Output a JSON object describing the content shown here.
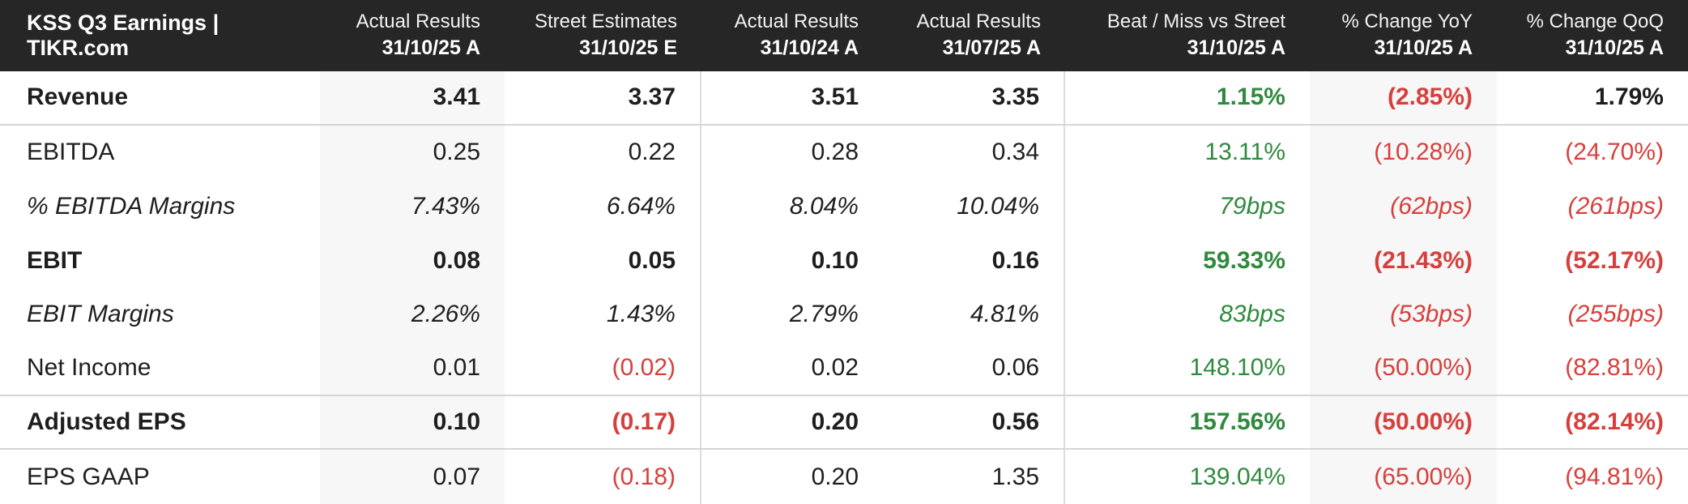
{
  "colors": {
    "positive_green": "#2f8a3e",
    "negative_red": "#d6403c",
    "header_background": "#262626",
    "header_text": "#ffffff",
    "body_text": "#1e1e1e",
    "shaded_column": "#f7f7f7",
    "row_separator": "#d5d5d5",
    "column_divider": "#dcdcdc"
  },
  "chart_data": {
    "type": "table",
    "title": "KSS Q3 Earnings | TIKR.com",
    "columns": [
      {
        "label": "Actual Results",
        "date": "31/10/25 A",
        "shaded": true,
        "divider_right": false
      },
      {
        "label": "Street Estimates",
        "date": "31/10/25 E",
        "shaded": false,
        "divider_right": true
      },
      {
        "label": "Actual Results",
        "date": "31/10/24 A",
        "shaded": false,
        "divider_right": false
      },
      {
        "label": "Actual Results",
        "date": "31/07/25 A",
        "shaded": false,
        "divider_right": true
      },
      {
        "label": "Beat / Miss vs Street",
        "date": "31/10/25 A",
        "shaded": false,
        "divider_right": false
      },
      {
        "label": "% Change YoY",
        "date": "31/10/25 A",
        "shaded": true,
        "divider_right": false
      },
      {
        "label": "% Change QoQ",
        "date": "31/10/25 A",
        "shaded": false,
        "divider_right": false
      }
    ],
    "rows": [
      {
        "label": "Revenue",
        "emphasis": "bold",
        "separator_below": true,
        "cells": [
          {
            "text": "3.41",
            "tone": "dark"
          },
          {
            "text": "3.37",
            "tone": "dark"
          },
          {
            "text": "3.51",
            "tone": "dark"
          },
          {
            "text": "3.35",
            "tone": "dark"
          },
          {
            "text": "1.15%",
            "tone": "green"
          },
          {
            "text": "(2.85%)",
            "tone": "red"
          },
          {
            "text": "1.79%",
            "tone": "dark"
          }
        ]
      },
      {
        "label": "EBITDA",
        "emphasis": "normal",
        "separator_below": false,
        "cells": [
          {
            "text": "0.25",
            "tone": "dark"
          },
          {
            "text": "0.22",
            "tone": "dark"
          },
          {
            "text": "0.28",
            "tone": "dark"
          },
          {
            "text": "0.34",
            "tone": "dark"
          },
          {
            "text": "13.11%",
            "tone": "green"
          },
          {
            "text": "(10.28%)",
            "tone": "red"
          },
          {
            "text": "(24.70%)",
            "tone": "red"
          }
        ]
      },
      {
        "label": "% EBITDA Margins",
        "emphasis": "italic",
        "separator_below": false,
        "cells": [
          {
            "text": "7.43%",
            "tone": "dark"
          },
          {
            "text": "6.64%",
            "tone": "dark"
          },
          {
            "text": "8.04%",
            "tone": "dark"
          },
          {
            "text": "10.04%",
            "tone": "dark"
          },
          {
            "text": "79bps",
            "tone": "green"
          },
          {
            "text": "(62bps)",
            "tone": "red"
          },
          {
            "text": "(261bps)",
            "tone": "red"
          }
        ]
      },
      {
        "label": "EBIT",
        "emphasis": "bold",
        "separator_below": false,
        "cells": [
          {
            "text": "0.08",
            "tone": "dark"
          },
          {
            "text": "0.05",
            "tone": "dark"
          },
          {
            "text": "0.10",
            "tone": "dark"
          },
          {
            "text": "0.16",
            "tone": "dark"
          },
          {
            "text": "59.33%",
            "tone": "green"
          },
          {
            "text": "(21.43%)",
            "tone": "red"
          },
          {
            "text": "(52.17%)",
            "tone": "red"
          }
        ]
      },
      {
        "label": "EBIT Margins",
        "emphasis": "italic",
        "separator_below": false,
        "cells": [
          {
            "text": "2.26%",
            "tone": "dark"
          },
          {
            "text": "1.43%",
            "tone": "dark"
          },
          {
            "text": "2.79%",
            "tone": "dark"
          },
          {
            "text": "4.81%",
            "tone": "dark"
          },
          {
            "text": "83bps",
            "tone": "green"
          },
          {
            "text": "(53bps)",
            "tone": "red"
          },
          {
            "text": "(255bps)",
            "tone": "red"
          }
        ]
      },
      {
        "label": "Net Income",
        "emphasis": "normal",
        "separator_below": true,
        "cells": [
          {
            "text": "0.01",
            "tone": "dark"
          },
          {
            "text": "(0.02)",
            "tone": "red"
          },
          {
            "text": "0.02",
            "tone": "dark"
          },
          {
            "text": "0.06",
            "tone": "dark"
          },
          {
            "text": "148.10%",
            "tone": "green"
          },
          {
            "text": "(50.00%)",
            "tone": "red"
          },
          {
            "text": "(82.81%)",
            "tone": "red"
          }
        ]
      },
      {
        "label": "Adjusted EPS",
        "emphasis": "bold",
        "separator_below": true,
        "cells": [
          {
            "text": "0.10",
            "tone": "dark"
          },
          {
            "text": "(0.17)",
            "tone": "red"
          },
          {
            "text": "0.20",
            "tone": "dark"
          },
          {
            "text": "0.56",
            "tone": "dark"
          },
          {
            "text": "157.56%",
            "tone": "green"
          },
          {
            "text": "(50.00%)",
            "tone": "red"
          },
          {
            "text": "(82.14%)",
            "tone": "red"
          }
        ]
      },
      {
        "label": "EPS GAAP",
        "emphasis": "normal",
        "separator_below": false,
        "cells": [
          {
            "text": "0.07",
            "tone": "dark"
          },
          {
            "text": "(0.18)",
            "tone": "red"
          },
          {
            "text": "0.20",
            "tone": "dark"
          },
          {
            "text": "1.35",
            "tone": "dark"
          },
          {
            "text": "139.04%",
            "tone": "green"
          },
          {
            "text": "(65.00%)",
            "tone": "red"
          },
          {
            "text": "(94.81%)",
            "tone": "red"
          }
        ]
      }
    ]
  }
}
